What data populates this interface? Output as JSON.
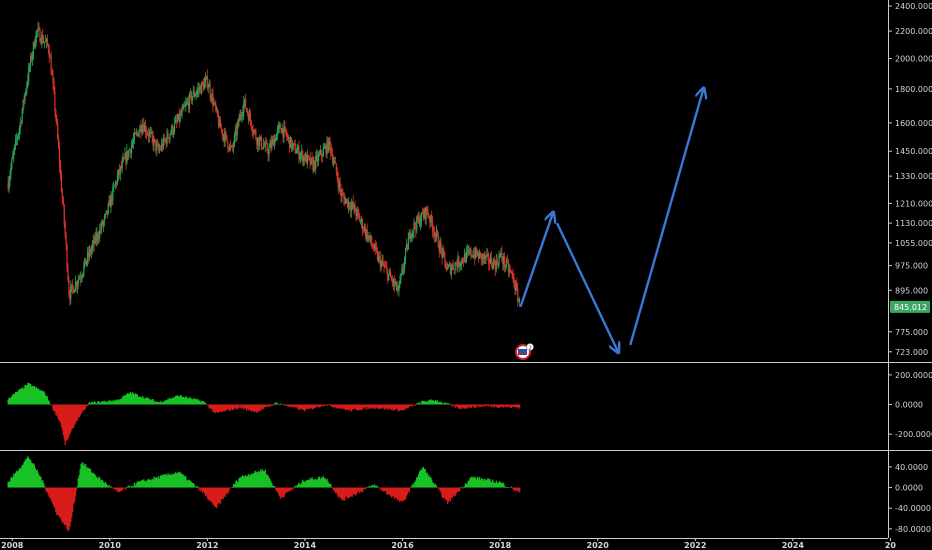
{
  "colors": {
    "background": "#000000",
    "up": "#26a65b",
    "down": "#e0322a",
    "histogram_up": "#19c227",
    "histogram_down": "#d81c1c",
    "arrow": "#3a78d4",
    "price_tag": "#3fa860",
    "grid_line": "#cccccc"
  },
  "chart_data": [
    {
      "type": "candlestick",
      "panel": "price",
      "scale": "log",
      "x_axis_labels": [
        "2008",
        "2010",
        "2012",
        "2014",
        "2016",
        "2018",
        "2020",
        "2022",
        "2024",
        "20"
      ],
      "y_axis_labels": [
        "2400.000",
        "2200.000",
        "2000.000",
        "1800.000",
        "1600.000",
        "1450.000",
        "1330.000",
        "1210.000",
        "1130.000",
        "1055.000",
        "975.000",
        "895.000",
        "845.012",
        "775.000",
        "723.000"
      ],
      "ylim": [
        715,
        2400
      ],
      "current_price": "845.012",
      "price_path": [
        [
          "2007-12",
          1300
        ],
        [
          "2008-03",
          1600
        ],
        [
          "2008-07",
          2200
        ],
        [
          "2008-10",
          2080
        ],
        [
          "2009-01",
          1300
        ],
        [
          "2009-03",
          880
        ],
        [
          "2009-06",
          950
        ],
        [
          "2009-12",
          1150
        ],
        [
          "2010-03",
          1330
        ],
        [
          "2010-09",
          1600
        ],
        [
          "2011-01",
          1450
        ],
        [
          "2011-06",
          1620
        ],
        [
          "2011-09",
          1750
        ],
        [
          "2012-01",
          1850
        ],
        [
          "2012-04",
          1580
        ],
        [
          "2012-07",
          1450
        ],
        [
          "2012-10",
          1720
        ],
        [
          "2013-01",
          1520
        ],
        [
          "2013-04",
          1450
        ],
        [
          "2013-07",
          1580
        ],
        [
          "2013-10",
          1470
        ],
        [
          "2014-03",
          1380
        ],
        [
          "2014-07",
          1490
        ],
        [
          "2014-10",
          1240
        ],
        [
          "2015-01",
          1190
        ],
        [
          "2015-07",
          1000
        ],
        [
          "2015-12",
          890
        ],
        [
          "2016-03",
          1100
        ],
        [
          "2016-07",
          1180
        ],
        [
          "2016-12",
          960
        ],
        [
          "2017-06",
          1020
        ],
        [
          "2017-12",
          980
        ],
        [
          "2018-01",
          1010
        ],
        [
          "2018-04",
          940
        ],
        [
          "2018-06",
          845
        ]
      ],
      "projection_arrows": [
        [
          [
            "2018-06",
            845
          ],
          [
            "2019-02",
            1170
          ]
        ],
        [
          [
            "2019-03",
            1130
          ],
          [
            "2020-06",
            723
          ]
        ],
        [
          [
            "2020-09",
            740
          ],
          [
            "2022-03",
            1800
          ]
        ]
      ]
    },
    {
      "type": "histogram",
      "panel": "oscillator-1",
      "y_axis_labels": [
        "200.0000",
        "0.0000",
        "-200.0000"
      ],
      "ylim": [
        -280,
        260
      ],
      "path": [
        [
          "2007-12",
          40
        ],
        [
          "2008-05",
          140
        ],
        [
          "2008-09",
          80
        ],
        [
          "2009-01",
          -130
        ],
        [
          "2009-02",
          -270
        ],
        [
          "2009-05",
          -100
        ],
        [
          "2009-08",
          10
        ],
        [
          "2010-03",
          30
        ],
        [
          "2010-06",
          80
        ],
        [
          "2011-01",
          15
        ],
        [
          "2011-06",
          60
        ],
        [
          "2011-12",
          20
        ],
        [
          "2012-03",
          -60
        ],
        [
          "2012-09",
          -20
        ],
        [
          "2013-01",
          -50
        ],
        [
          "2013-06",
          10
        ],
        [
          "2014-01",
          -40
        ],
        [
          "2014-06",
          0
        ],
        [
          "2014-12",
          -40
        ],
        [
          "2015-06",
          -20
        ],
        [
          "2016-01",
          -40
        ],
        [
          "2016-06",
          20
        ],
        [
          "2016-09",
          30
        ],
        [
          "2017-03",
          -25
        ],
        [
          "2017-09",
          -10
        ],
        [
          "2018-06",
          -20
        ]
      ]
    },
    {
      "type": "histogram",
      "panel": "oscillator-2",
      "y_axis_labels": [
        "40.0000",
        "0.0000",
        "-40.0000",
        "-80.0000"
      ],
      "ylim": [
        -90,
        65
      ],
      "path": [
        [
          "2007-12",
          10
        ],
        [
          "2008-05",
          60
        ],
        [
          "2008-08",
          20
        ],
        [
          "2008-12",
          -50
        ],
        [
          "2009-03",
          -85
        ],
        [
          "2009-06",
          50
        ],
        [
          "2009-10",
          20
        ],
        [
          "2010-03",
          -10
        ],
        [
          "2010-08",
          10
        ],
        [
          "2011-01",
          20
        ],
        [
          "2011-06",
          30
        ],
        [
          "2011-12",
          -10
        ],
        [
          "2012-03",
          -40
        ],
        [
          "2012-09",
          20
        ],
        [
          "2013-03",
          35
        ],
        [
          "2013-07",
          -20
        ],
        [
          "2014-01",
          15
        ],
        [
          "2014-06",
          20
        ],
        [
          "2014-10",
          -25
        ],
        [
          "2015-06",
          5
        ],
        [
          "2016-01",
          -30
        ],
        [
          "2016-06",
          40
        ],
        [
          "2016-12",
          -30
        ],
        [
          "2017-06",
          20
        ],
        [
          "2018-01",
          10
        ],
        [
          "2018-06",
          -10
        ]
      ]
    }
  ]
}
